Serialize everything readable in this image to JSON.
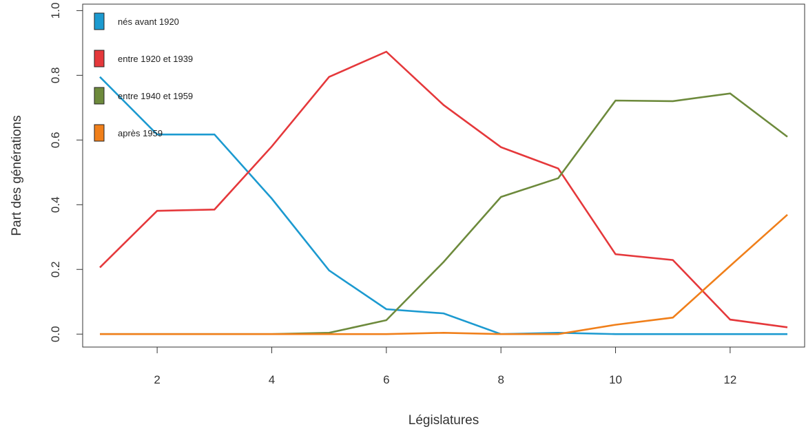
{
  "chart_data": {
    "type": "line",
    "xlabel": "Législatures",
    "ylabel": "Part des générations",
    "xlim": [
      0.7,
      13.3
    ],
    "ylim": [
      -0.04,
      1.02
    ],
    "x_ticks": [
      2,
      4,
      6,
      8,
      10,
      12
    ],
    "x_tick_labels": [
      "2",
      "4",
      "6",
      "8",
      "10",
      "12"
    ],
    "y_ticks": [
      0.0,
      0.2,
      0.4,
      0.6,
      0.8,
      1.0
    ],
    "y_tick_labels": [
      "0.0",
      "0.2",
      "0.4",
      "0.6",
      "0.8",
      "1.0"
    ],
    "grid": false,
    "legend_position": "top-left",
    "x": [
      1,
      2,
      3,
      4,
      5,
      6,
      7,
      8,
      9,
      10,
      11,
      12,
      13
    ],
    "series": [
      {
        "name": "nés avant 1920",
        "color": "#1C9AD0",
        "values": [
          0.795,
          0.617,
          0.617,
          0.419,
          0.197,
          0.077,
          0.064,
          0.0,
          0.004,
          0.0,
          0.0,
          0.0,
          0.0
        ]
      },
      {
        "name": "entre 1920 et 1939",
        "color": "#E5383B",
        "values": [
          0.206,
          0.381,
          0.385,
          0.58,
          0.795,
          0.873,
          0.708,
          0.578,
          0.512,
          0.247,
          0.229,
          0.045,
          0.021
        ]
      },
      {
        "name": "entre 1940 et 1959",
        "color": "#6D8A3C",
        "values": [
          0.0,
          0.0,
          0.0,
          0.0,
          0.004,
          0.043,
          0.223,
          0.424,
          0.482,
          0.722,
          0.72,
          0.744,
          0.61
        ]
      },
      {
        "name": "après 1959",
        "color": "#F07F1A",
        "values": [
          0.0,
          0.0,
          0.0,
          0.0,
          0.0,
          0.0,
          0.004,
          0.0,
          0.0,
          0.029,
          0.051,
          0.211,
          0.369
        ]
      }
    ]
  }
}
